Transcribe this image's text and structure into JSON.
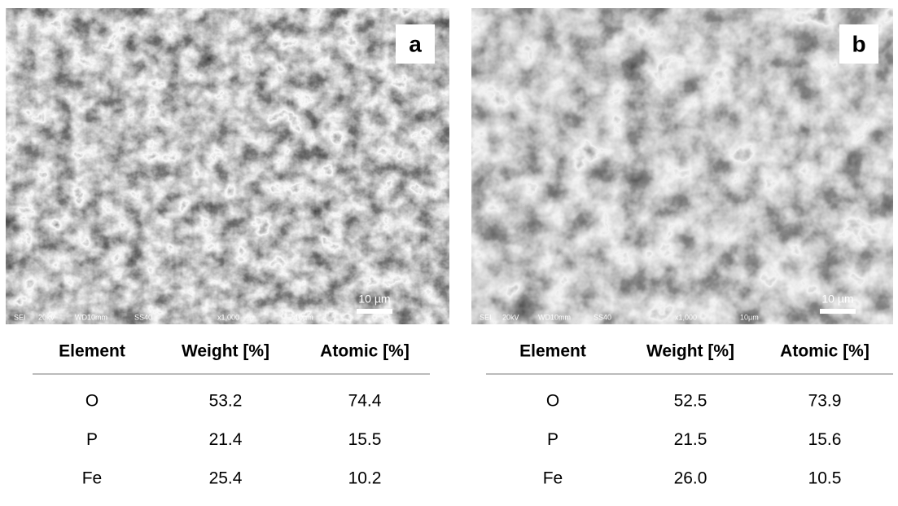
{
  "panels": [
    {
      "label": "a",
      "scale_bar": "10 µm",
      "info_bar": [
        "SEI",
        "20kV",
        "WD10mm",
        "SS40",
        "x1,000",
        "10µm"
      ],
      "table": {
        "columns": [
          "Element",
          "Weight [%]",
          "Atomic [%]"
        ],
        "rows": [
          [
            "O",
            "53.2",
            "74.4"
          ],
          [
            "P",
            "21.4",
            "15.5"
          ],
          [
            "Fe",
            "25.4",
            "10.2"
          ]
        ]
      }
    },
    {
      "label": "b",
      "scale_bar": "10 µm",
      "info_bar": [
        "SEI",
        "20kV",
        "WD10mm",
        "SS40",
        "x1,000",
        "10µm"
      ],
      "table": {
        "columns": [
          "Element",
          "Weight [%]",
          "Atomic [%]"
        ],
        "rows": [
          [
            "O",
            "52.5",
            "73.9"
          ],
          [
            "P",
            "21.5",
            "15.6"
          ],
          [
            "Fe",
            "26.0",
            "10.5"
          ]
        ]
      }
    }
  ]
}
